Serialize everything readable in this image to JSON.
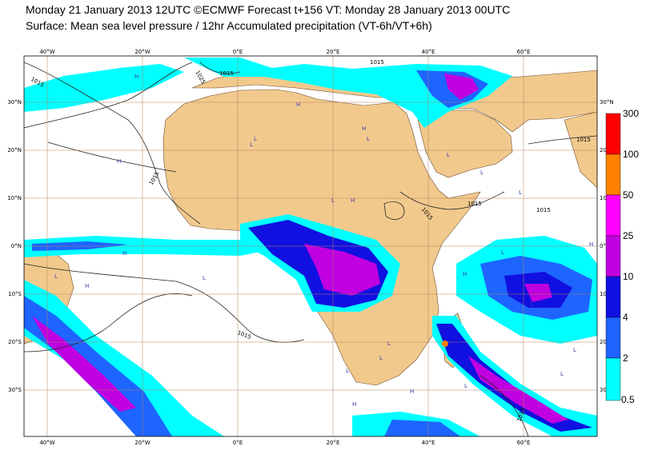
{
  "header": {
    "line1": "Monday 21 January 2013 12UTC ©ECMWF Forecast t+156 VT: Monday 28 January 2013 00UTC",
    "line2": "Surface: Mean sea level pressure / 12hr Accumulated precipitation (VT-6h/VT+6h)"
  },
  "map": {
    "lon_labels": [
      "40°W",
      "20°W",
      "0°E",
      "20°E",
      "40°E",
      "60°E"
    ],
    "lat_labels_left": [
      "30°N",
      "20°N",
      "10°N",
      "0°N",
      "10°S",
      "20°S",
      "30°S"
    ],
    "lat_labels_right": [
      "30°N",
      "20°N",
      "10°N",
      "0°N",
      "10°S",
      "20°S",
      "30"
    ],
    "isobar_labels": [
      "1015",
      "1025",
      "1015",
      "1015",
      "1015",
      "1015",
      "1015",
      "1015",
      "1015",
      "1015",
      "1015"
    ],
    "pressure_centers": [
      "H",
      "H",
      "H",
      "L",
      "L",
      "L",
      "L",
      "H",
      "L",
      "L",
      "H",
      "L",
      "L",
      "H",
      "L",
      "L",
      "L",
      "H",
      "L",
      "H",
      "L",
      "L",
      "H",
      "H",
      "L",
      "L",
      "H",
      "L"
    ],
    "colors": {
      "land": "#f2c98d",
      "sea": "#ffffff",
      "grid": "#b0805a",
      "coast": "#6b4a2a",
      "isobar": "#222222"
    }
  },
  "colorbar": {
    "labels": [
      "300",
      "100",
      "50",
      "25",
      "10",
      "4",
      "2",
      "0.5"
    ],
    "colors": [
      "#ff0000",
      "#ff8000",
      "#ff00ff",
      "#c000e0",
      "#1010e0",
      "#1e64ff",
      "#00ffff"
    ]
  }
}
